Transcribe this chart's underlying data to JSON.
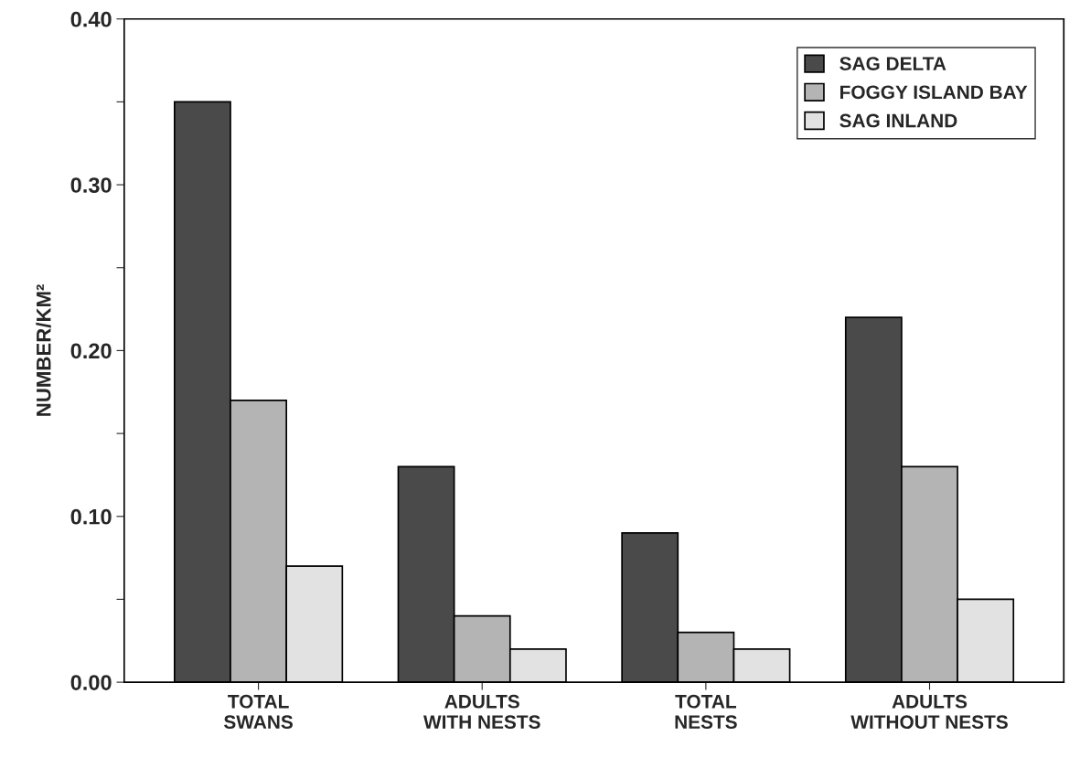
{
  "chart_data": {
    "type": "bar",
    "ylabel": "NUMBER/KM²",
    "categories": [
      "TOTAL\nSWANS",
      "ADULTS\nWITH NESTS",
      "TOTAL\nNESTS",
      "ADULTS\nWITHOUT NESTS"
    ],
    "series": [
      {
        "name": "SAG DELTA",
        "color": "#4a4a4a",
        "values": [
          0.35,
          0.13,
          0.09,
          0.22
        ]
      },
      {
        "name": "FOGGY ISLAND BAY",
        "color": "#b4b4b4",
        "values": [
          0.17,
          0.04,
          0.03,
          0.13
        ]
      },
      {
        "name": "SAG INLAND",
        "color": "#e2e2e2",
        "values": [
          0.07,
          0.02,
          0.02,
          0.05
        ]
      }
    ],
    "ylim": [
      0,
      0.4
    ],
    "yticks": [
      {
        "value": 0,
        "label": "0.00"
      },
      {
        "value": 0.05,
        "label": null
      },
      {
        "value": 0.1,
        "label": "0.10"
      },
      {
        "value": 0.15,
        "label": null
      },
      {
        "value": 0.2,
        "label": "0.20"
      },
      {
        "value": 0.25,
        "label": null
      },
      {
        "value": 0.3,
        "label": "0.30"
      },
      {
        "value": 0.35,
        "label": null
      },
      {
        "value": 0.4,
        "label": "0.40"
      }
    ],
    "legend": "top right",
    "grid": false
  }
}
